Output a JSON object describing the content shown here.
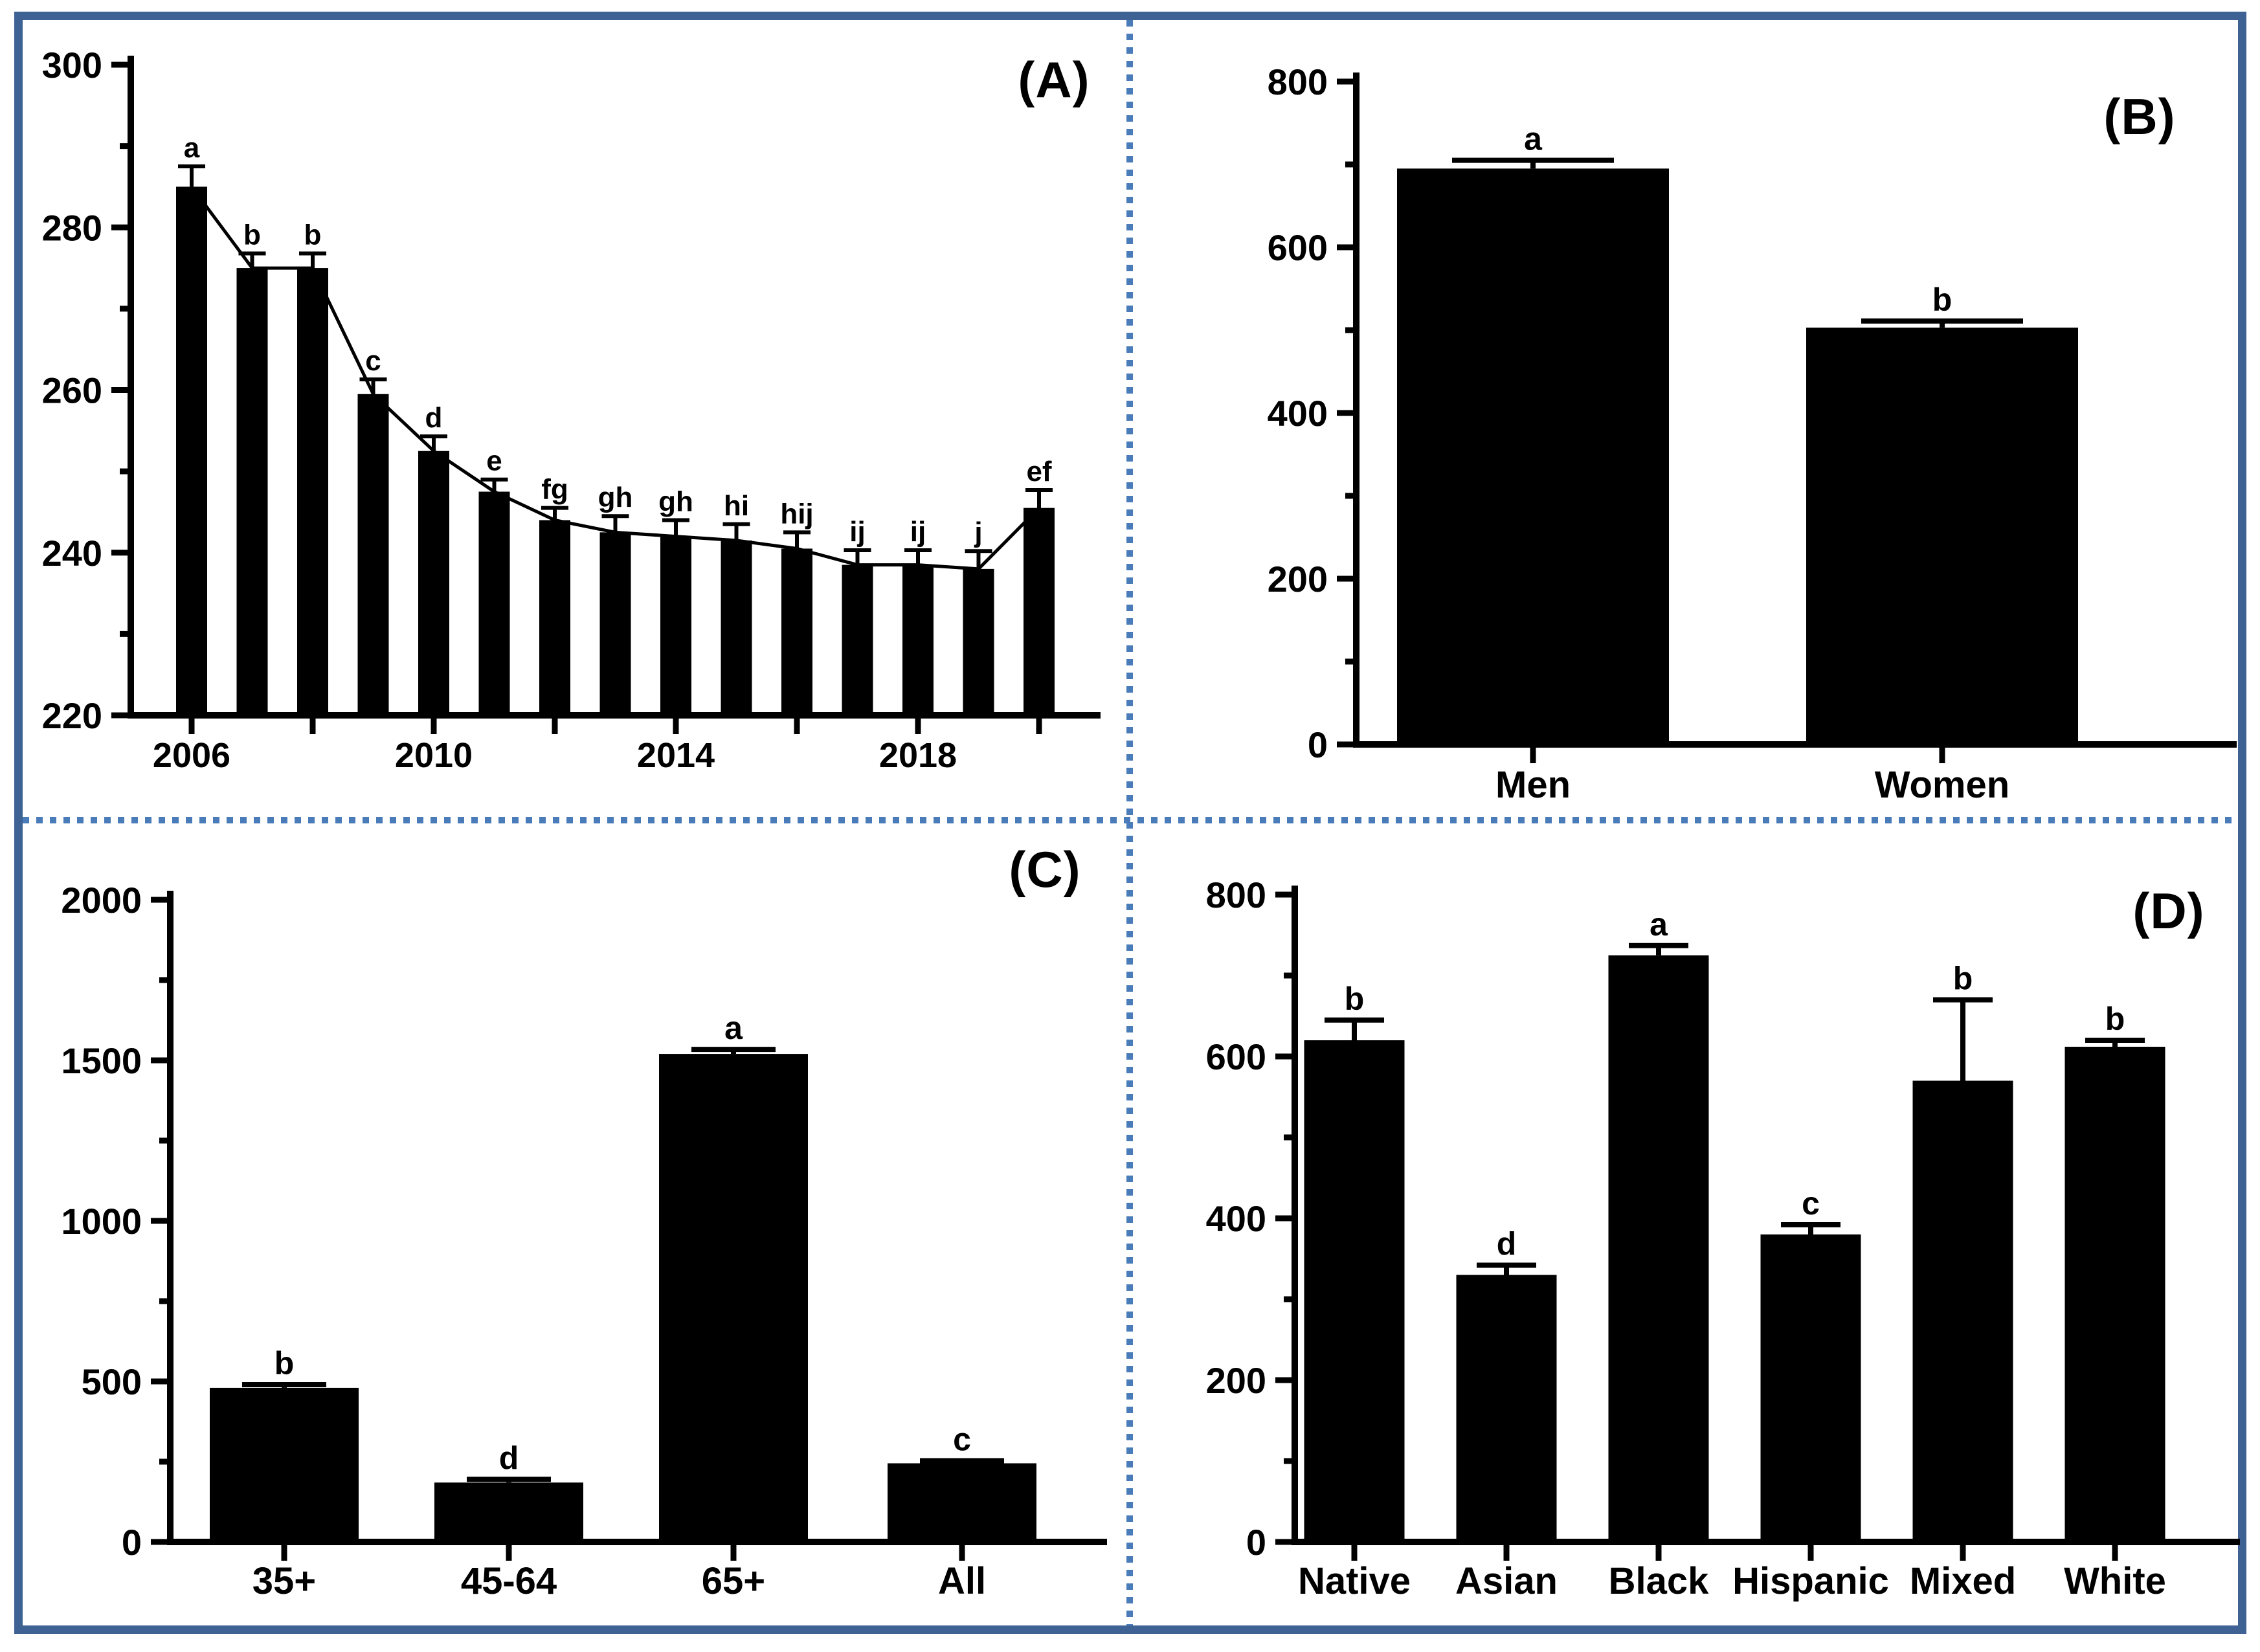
{
  "figure": {
    "panel_labels": [
      "(A)",
      "(B)",
      "(C)",
      "(D)"
    ],
    "colors": {
      "bar": "#000000",
      "axis": "#000000",
      "text": "#000000",
      "border": "#3f6294",
      "divider": "#4a7cba",
      "background": "#ffffff"
    }
  },
  "chart_data": [
    {
      "id": "A",
      "type": "bar",
      "panel_label": "(A)",
      "x": [
        2006,
        2007,
        2008,
        2009,
        2010,
        2011,
        2012,
        2013,
        2014,
        2015,
        2016,
        2017,
        2018,
        2019,
        2020
      ],
      "values": [
        285,
        275,
        275,
        259.5,
        252.5,
        247.5,
        244,
        242.5,
        242,
        241.5,
        240.5,
        238.5,
        238.5,
        238,
        245.5
      ],
      "errors": [
        2.5,
        1.8,
        1.8,
        1.8,
        1.8,
        1.5,
        1.5,
        2,
        2,
        2,
        2,
        1.8,
        1.8,
        2.2,
        2.2
      ],
      "sig_letters": [
        "a",
        "b",
        "b",
        "c",
        "d",
        "e",
        "fg",
        "gh",
        "gh",
        "hi",
        "hij",
        "ij",
        "ij",
        "j",
        "ef"
      ],
      "x_tick_years": [
        2006,
        2008,
        2010,
        2012,
        2014,
        2016,
        2018,
        2020
      ],
      "x_label_years": [
        "2006",
        "2010",
        "2014",
        "2018"
      ],
      "ylim": [
        220,
        300
      ],
      "y_major_ticks": [
        220,
        240,
        260,
        280,
        300
      ],
      "y_minor_ticks": [
        230,
        250,
        270,
        290
      ],
      "overlay_line": true,
      "grid": false,
      "legend": "none"
    },
    {
      "id": "B",
      "type": "bar",
      "panel_label": "(B)",
      "categories": [
        "Men",
        "Women"
      ],
      "values": [
        695,
        503
      ],
      "errors": [
        10,
        8
      ],
      "sig_letters": [
        "a",
        "b"
      ],
      "ylim": [
        0,
        800
      ],
      "y_major_ticks": [
        0,
        200,
        400,
        600,
        800
      ],
      "y_minor_ticks": [
        100,
        300,
        500,
        700
      ],
      "overlay_line": false,
      "grid": false,
      "legend": "none"
    },
    {
      "id": "C",
      "type": "bar",
      "panel_label": "(C)",
      "categories": [
        "35+",
        "45-64",
        "65+",
        "All"
      ],
      "values": [
        480,
        185,
        1520,
        245
      ],
      "errors": [
        10,
        10,
        14,
        8
      ],
      "sig_letters": [
        "b",
        "d",
        "a",
        "c"
      ],
      "ylim": [
        0,
        2000
      ],
      "y_major_ticks": [
        0,
        500,
        1000,
        1500,
        2000
      ],
      "y_minor_ticks": [
        250,
        750,
        1250,
        1750
      ],
      "overlay_line": false,
      "grid": false,
      "legend": "none"
    },
    {
      "id": "D",
      "type": "bar",
      "panel_label": "(D)",
      "categories": [
        "Native",
        "Asian",
        "Black",
        "Hispanic",
        "Mixed",
        "White"
      ],
      "values": [
        620,
        330,
        725,
        380,
        570,
        612
      ],
      "errors": [
        25,
        12,
        12,
        12,
        100,
        8
      ],
      "sig_letters": [
        "b",
        "d",
        "a",
        "c",
        "b",
        "b"
      ],
      "ylim": [
        0,
        800
      ],
      "y_major_ticks": [
        0,
        200,
        400,
        600,
        800
      ],
      "y_minor_ticks": [
        100,
        300,
        500,
        700
      ],
      "overlay_line": false,
      "grid": false,
      "legend": "none"
    }
  ]
}
